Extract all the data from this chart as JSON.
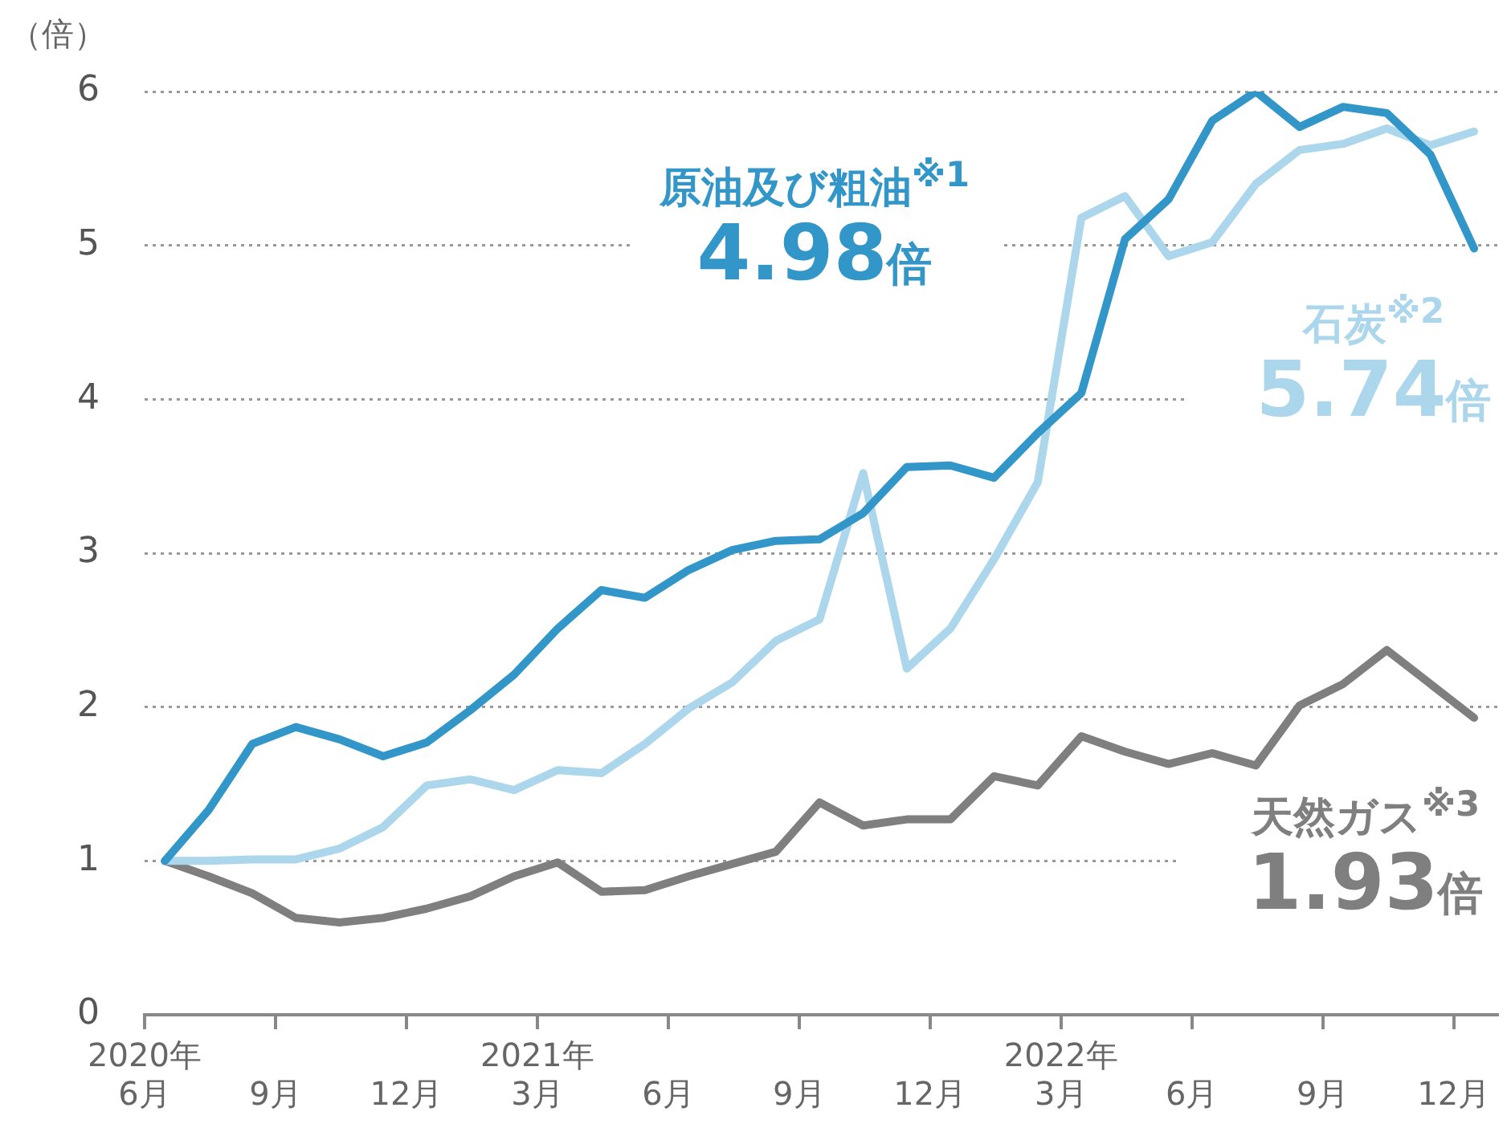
{
  "chart_data": {
    "type": "line",
    "ylabel": "（倍）",
    "x": [
      "2020-06-15",
      "2020-07-15",
      "2020-08-15",
      "2020-09-15",
      "2020-10-15",
      "2020-11-15",
      "2020-12-15",
      "2021-01-15",
      "2021-02-15",
      "2021-03-15",
      "2021-04-15",
      "2021-05-15",
      "2021-06-15",
      "2021-07-15",
      "2021-08-15",
      "2021-09-15",
      "2021-10-15",
      "2021-11-15",
      "2021-12-15",
      "2022-01-15",
      "2022-02-15",
      "2022-03-15",
      "2022-04-15",
      "2022-05-15",
      "2022-06-15",
      "2022-07-15",
      "2022-08-15",
      "2022-09-15",
      "2022-10-15",
      "2022-11-15",
      "2022-12-15"
    ],
    "series": [
      {
        "name": "原油及び粗油$^{※1}$",
        "color": "#3396c8",
        "values": [
          1.0,
          1.33,
          1.76,
          1.87,
          1.79,
          1.68,
          1.77,
          1.98,
          2.21,
          2.51,
          2.76,
          2.71,
          2.89,
          3.02,
          3.08,
          3.09,
          3.26,
          3.56,
          3.57,
          3.49,
          3.78,
          4.04,
          5.04,
          5.3,
          5.81,
          6.0,
          5.77,
          5.9,
          5.86,
          5.59,
          4.98
        ]
      },
      {
        "name": "石炭$^{※2}$",
        "color": "#acd6ec",
        "values": [
          1.0,
          1.0,
          1.01,
          1.01,
          1.08,
          1.22,
          1.49,
          1.53,
          1.46,
          1.59,
          1.57,
          1.76,
          1.99,
          2.16,
          2.43,
          2.57,
          3.52,
          2.25,
          2.51,
          2.96,
          3.46,
          5.18,
          5.32,
          4.93,
          5.02,
          5.4,
          5.62,
          5.66,
          5.76,
          5.65,
          5.74
        ]
      },
      {
        "name": "天然ガス$^{※3}$",
        "color": "#7f7f7f",
        "values": [
          1.0,
          0.9,
          0.79,
          0.63,
          0.6,
          0.63,
          0.69,
          0.77,
          0.9,
          0.99,
          0.8,
          0.81,
          0.9,
          0.98,
          1.06,
          1.38,
          1.23,
          1.27,
          1.27,
          1.55,
          1.49,
          1.81,
          1.71,
          1.63,
          1.7,
          1.62,
          2.01,
          2.15,
          2.37,
          2.15,
          1.93
        ]
      }
    ],
    "annotations": [
      "4.98倍",
      "5.74倍",
      "1.93倍"
    ],
    "xlim": [
      "2020-06",
      "2023-01"
    ],
    "xticks": [
      {
        "value": "2020-06",
        "label": "2020年\n6月"
      },
      {
        "value": "2020-09",
        "label": "9月"
      },
      {
        "value": "2020-12",
        "label": "12月"
      },
      {
        "value": "2021-03",
        "label": "2021年\n3月"
      },
      {
        "value": "2021-06",
        "label": "6月"
      },
      {
        "value": "2021-09",
        "label": "9月"
      },
      {
        "value": "2021-12",
        "label": "12月"
      },
      {
        "value": "2022-03",
        "label": "2022年\n3月"
      },
      {
        "value": "2022-06",
        "label": "6月"
      },
      {
        "value": "2022-09",
        "label": "9月"
      },
      {
        "value": "2022-12",
        "label": "12月"
      }
    ],
    "ylim": [
      0,
      6
    ],
    "yticks": [
      0,
      1,
      2,
      3,
      4,
      5,
      6
    ],
    "grid": "y",
    "legend": false,
    "marker": "none",
    "line_style": "solid"
  }
}
